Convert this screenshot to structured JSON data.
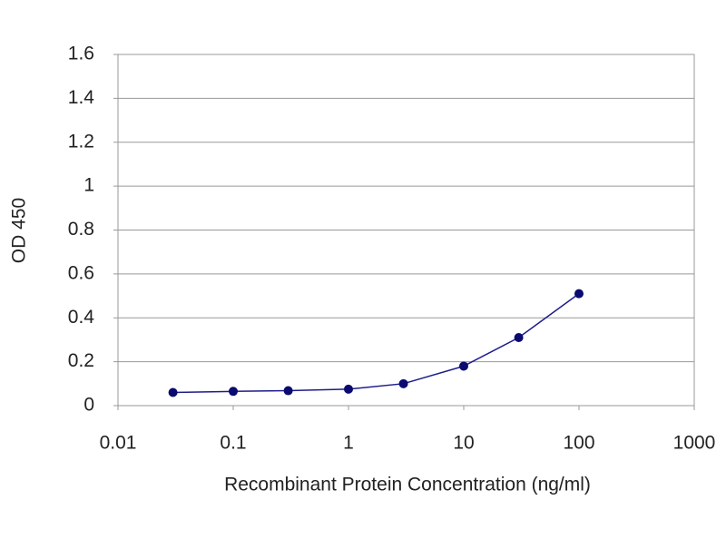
{
  "chart_data": {
    "type": "line",
    "xlabel": "Recombinant Protein Concentration (ng/ml)",
    "ylabel": "OD 450",
    "xscale": "log",
    "x": [
      0.03,
      0.1,
      0.3,
      1,
      3,
      10,
      30,
      100
    ],
    "series": [
      {
        "color": "#1c1c8c",
        "values": [
          0.06,
          0.065,
          0.068,
          0.075,
          0.1,
          0.18,
          0.31,
          0.51
        ]
      }
    ],
    "xlim": [
      0.01,
      1000
    ],
    "xticks": [
      0.01,
      0.1,
      1,
      10,
      100,
      1000
    ],
    "ylim": [
      0,
      1.6
    ],
    "yticks": [
      0,
      0.2,
      0.4,
      0.6,
      0.8,
      1,
      1.2,
      1.4,
      1.6
    ],
    "grid": true
  }
}
